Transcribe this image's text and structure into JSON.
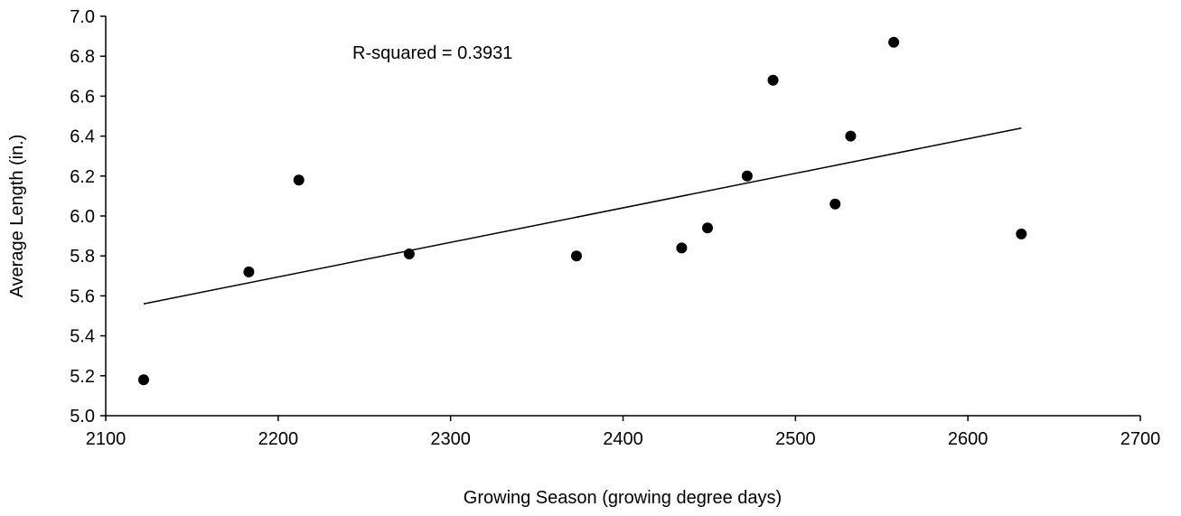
{
  "chart_data": {
    "type": "scatter",
    "title": "",
    "xlabel": "Growing Season (growing degree days)",
    "ylabel": "Average Length (in.)",
    "xlim": [
      2100,
      2700
    ],
    "ylim": [
      5.0,
      7.0
    ],
    "x_ticks": [
      2100,
      2200,
      2300,
      2400,
      2500,
      2600,
      2700
    ],
    "y_ticks": [
      5.0,
      5.2,
      5.4,
      5.6,
      5.8,
      6.0,
      6.2,
      6.4,
      6.6,
      6.8,
      7.0
    ],
    "y_tick_labels": [
      "5.0",
      "5.2",
      "5.4",
      "5.6",
      "5.8",
      "6.0",
      "6.2",
      "6.4",
      "6.6",
      "6.8",
      "7.0"
    ],
    "grid": false,
    "series": [
      {
        "points": [
          {
            "x": 2122,
            "y": 5.18
          },
          {
            "x": 2183,
            "y": 5.72
          },
          {
            "x": 2212,
            "y": 6.18
          },
          {
            "x": 2276,
            "y": 5.81
          },
          {
            "x": 2373,
            "y": 5.8
          },
          {
            "x": 2434,
            "y": 5.84
          },
          {
            "x": 2449,
            "y": 5.94
          },
          {
            "x": 2472,
            "y": 6.2
          },
          {
            "x": 2487,
            "y": 6.68
          },
          {
            "x": 2523,
            "y": 6.06
          },
          {
            "x": 2532,
            "y": 6.4
          },
          {
            "x": 2557,
            "y": 6.87
          },
          {
            "x": 2631,
            "y": 5.91
          }
        ],
        "color": "#000000"
      }
    ],
    "trendline": {
      "type": "linear",
      "x": [
        2122,
        2631
      ],
      "y": [
        5.56,
        6.44
      ],
      "color": "#000000"
    },
    "annotations": [
      {
        "text": "R-squared = 0.3931",
        "anchor_x": 2250,
        "anchor_y": 6.84
      }
    ]
  }
}
